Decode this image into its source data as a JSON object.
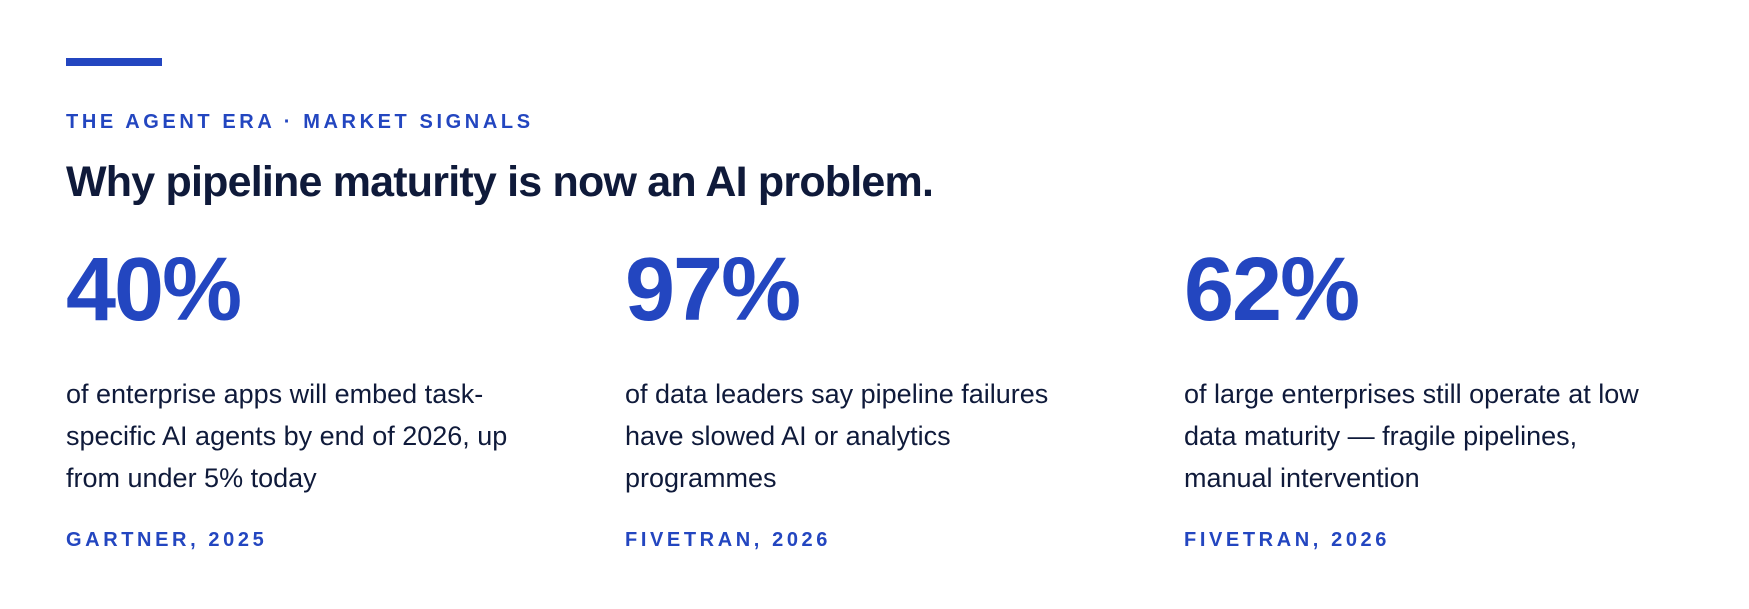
{
  "eyebrow": "THE AGENT ERA · MARKET SIGNALS",
  "title": "Why pipeline maturity is now an AI problem.",
  "stats": [
    {
      "value": "40%",
      "description": "of enterprise apps will embed task-specific AI agents by end of 2026, up from under 5% today",
      "source": "GARTNER, 2025"
    },
    {
      "value": "97%",
      "description": "of data leaders say pipeline failures have slowed AI or analytics programmes",
      "source": "FIVETRAN, 2026"
    },
    {
      "value": "62%",
      "description": "of large enterprises still operate at low data maturity — fragile pipelines, manual intervention",
      "source": "FIVETRAN, 2026"
    }
  ]
}
